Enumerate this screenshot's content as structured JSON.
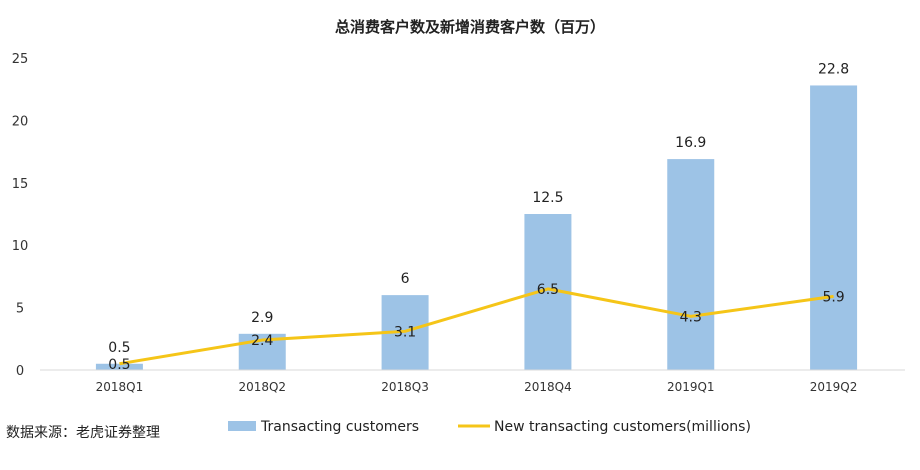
{
  "chart_data": {
    "type": "bar",
    "title": "总消费客户数及新增消费客户数（百万）",
    "categories": [
      "2018Q1",
      "2018Q2",
      "2018Q3",
      "2018Q4",
      "2019Q1",
      "2019Q2"
    ],
    "series": [
      {
        "name": "Transacting customers",
        "type": "bar",
        "values": [
          0.5,
          2.9,
          6,
          12.5,
          16.9,
          22.8
        ],
        "color": "#9dc3e6"
      },
      {
        "name": "New transacting customers(millions)",
        "type": "line",
        "values": [
          0.5,
          2.4,
          3.1,
          6.5,
          4.3,
          5.9
        ],
        "color": "#f5c518"
      }
    ],
    "yticks": [
      0,
      5,
      10,
      15,
      20,
      25
    ],
    "ylim": [
      0,
      25
    ],
    "grid": false,
    "legend_position": "bottom"
  },
  "source": "数据来源：老虎证券整理"
}
